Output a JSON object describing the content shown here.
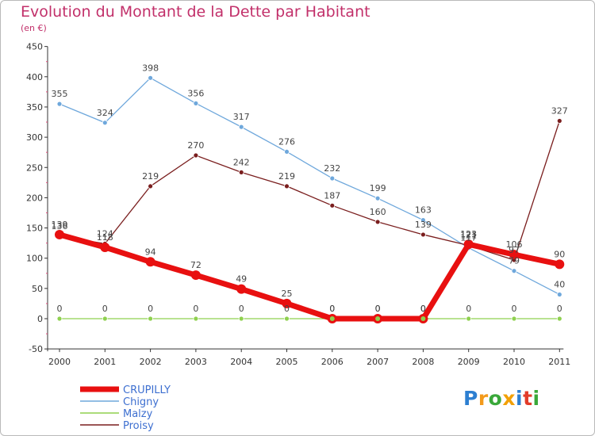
{
  "chart_data": {
    "type": "line",
    "title": "Evolution du Montant de la Dette par Habitant",
    "subtitle": "(en €)",
    "xlabel": "",
    "ylabel": "",
    "categories": [
      "2000",
      "2001",
      "2002",
      "2003",
      "2004",
      "2005",
      "2006",
      "2007",
      "2008",
      "2009",
      "2010",
      "2011"
    ],
    "ylim": [
      -50,
      450
    ],
    "yticks": [
      -50,
      0,
      50,
      100,
      150,
      200,
      250,
      300,
      350,
      400,
      450
    ],
    "ytick_labels": [
      "-50",
      "0",
      "50",
      "100",
      "150",
      "200",
      "250",
      "300",
      "350",
      "400",
      "450"
    ],
    "grid": false,
    "legend_position": "bottom-left",
    "series": [
      {
        "name": "Proisy",
        "color": "#7a1e1e",
        "values": [
          136,
          124,
          219,
          270,
          242,
          219,
          187,
          160,
          139,
          121,
          97,
          327
        ],
        "labels": [
          "136",
          "124",
          "219",
          "270",
          "242",
          "219",
          "187",
          "160",
          "139",
          "121",
          "97",
          "327"
        ]
      },
      {
        "name": "Chigny",
        "color": "#6fa8dc",
        "values": [
          355,
          324,
          398,
          356,
          317,
          276,
          232,
          199,
          163,
          117,
          79,
          40
        ],
        "labels": [
          "355",
          "324",
          "398",
          "356",
          "317",
          "276",
          "232",
          "199",
          "163",
          "117",
          "79",
          "40"
        ]
      },
      {
        "name": "Malzy",
        "color": "#8fd14f",
        "values": [
          0,
          0,
          0,
          0,
          0,
          0,
          0,
          0,
          0,
          0,
          0,
          0
        ],
        "labels": [
          "0",
          "0",
          "0",
          "0",
          "0",
          "0",
          "0",
          "0",
          "0",
          "0",
          "0",
          "0"
        ]
      },
      {
        "name": "CRUPILLY",
        "color": "#e81010",
        "values": [
          139,
          118,
          94,
          72,
          49,
          25,
          0,
          0,
          0,
          123,
          106,
          90
        ],
        "labels": [
          "139",
          "118",
          "94",
          "72",
          "49",
          "25",
          "0",
          "0",
          "0",
          "123",
          "106",
          "90"
        ]
      }
    ]
  },
  "logo": {
    "text": "Proxiti"
  }
}
